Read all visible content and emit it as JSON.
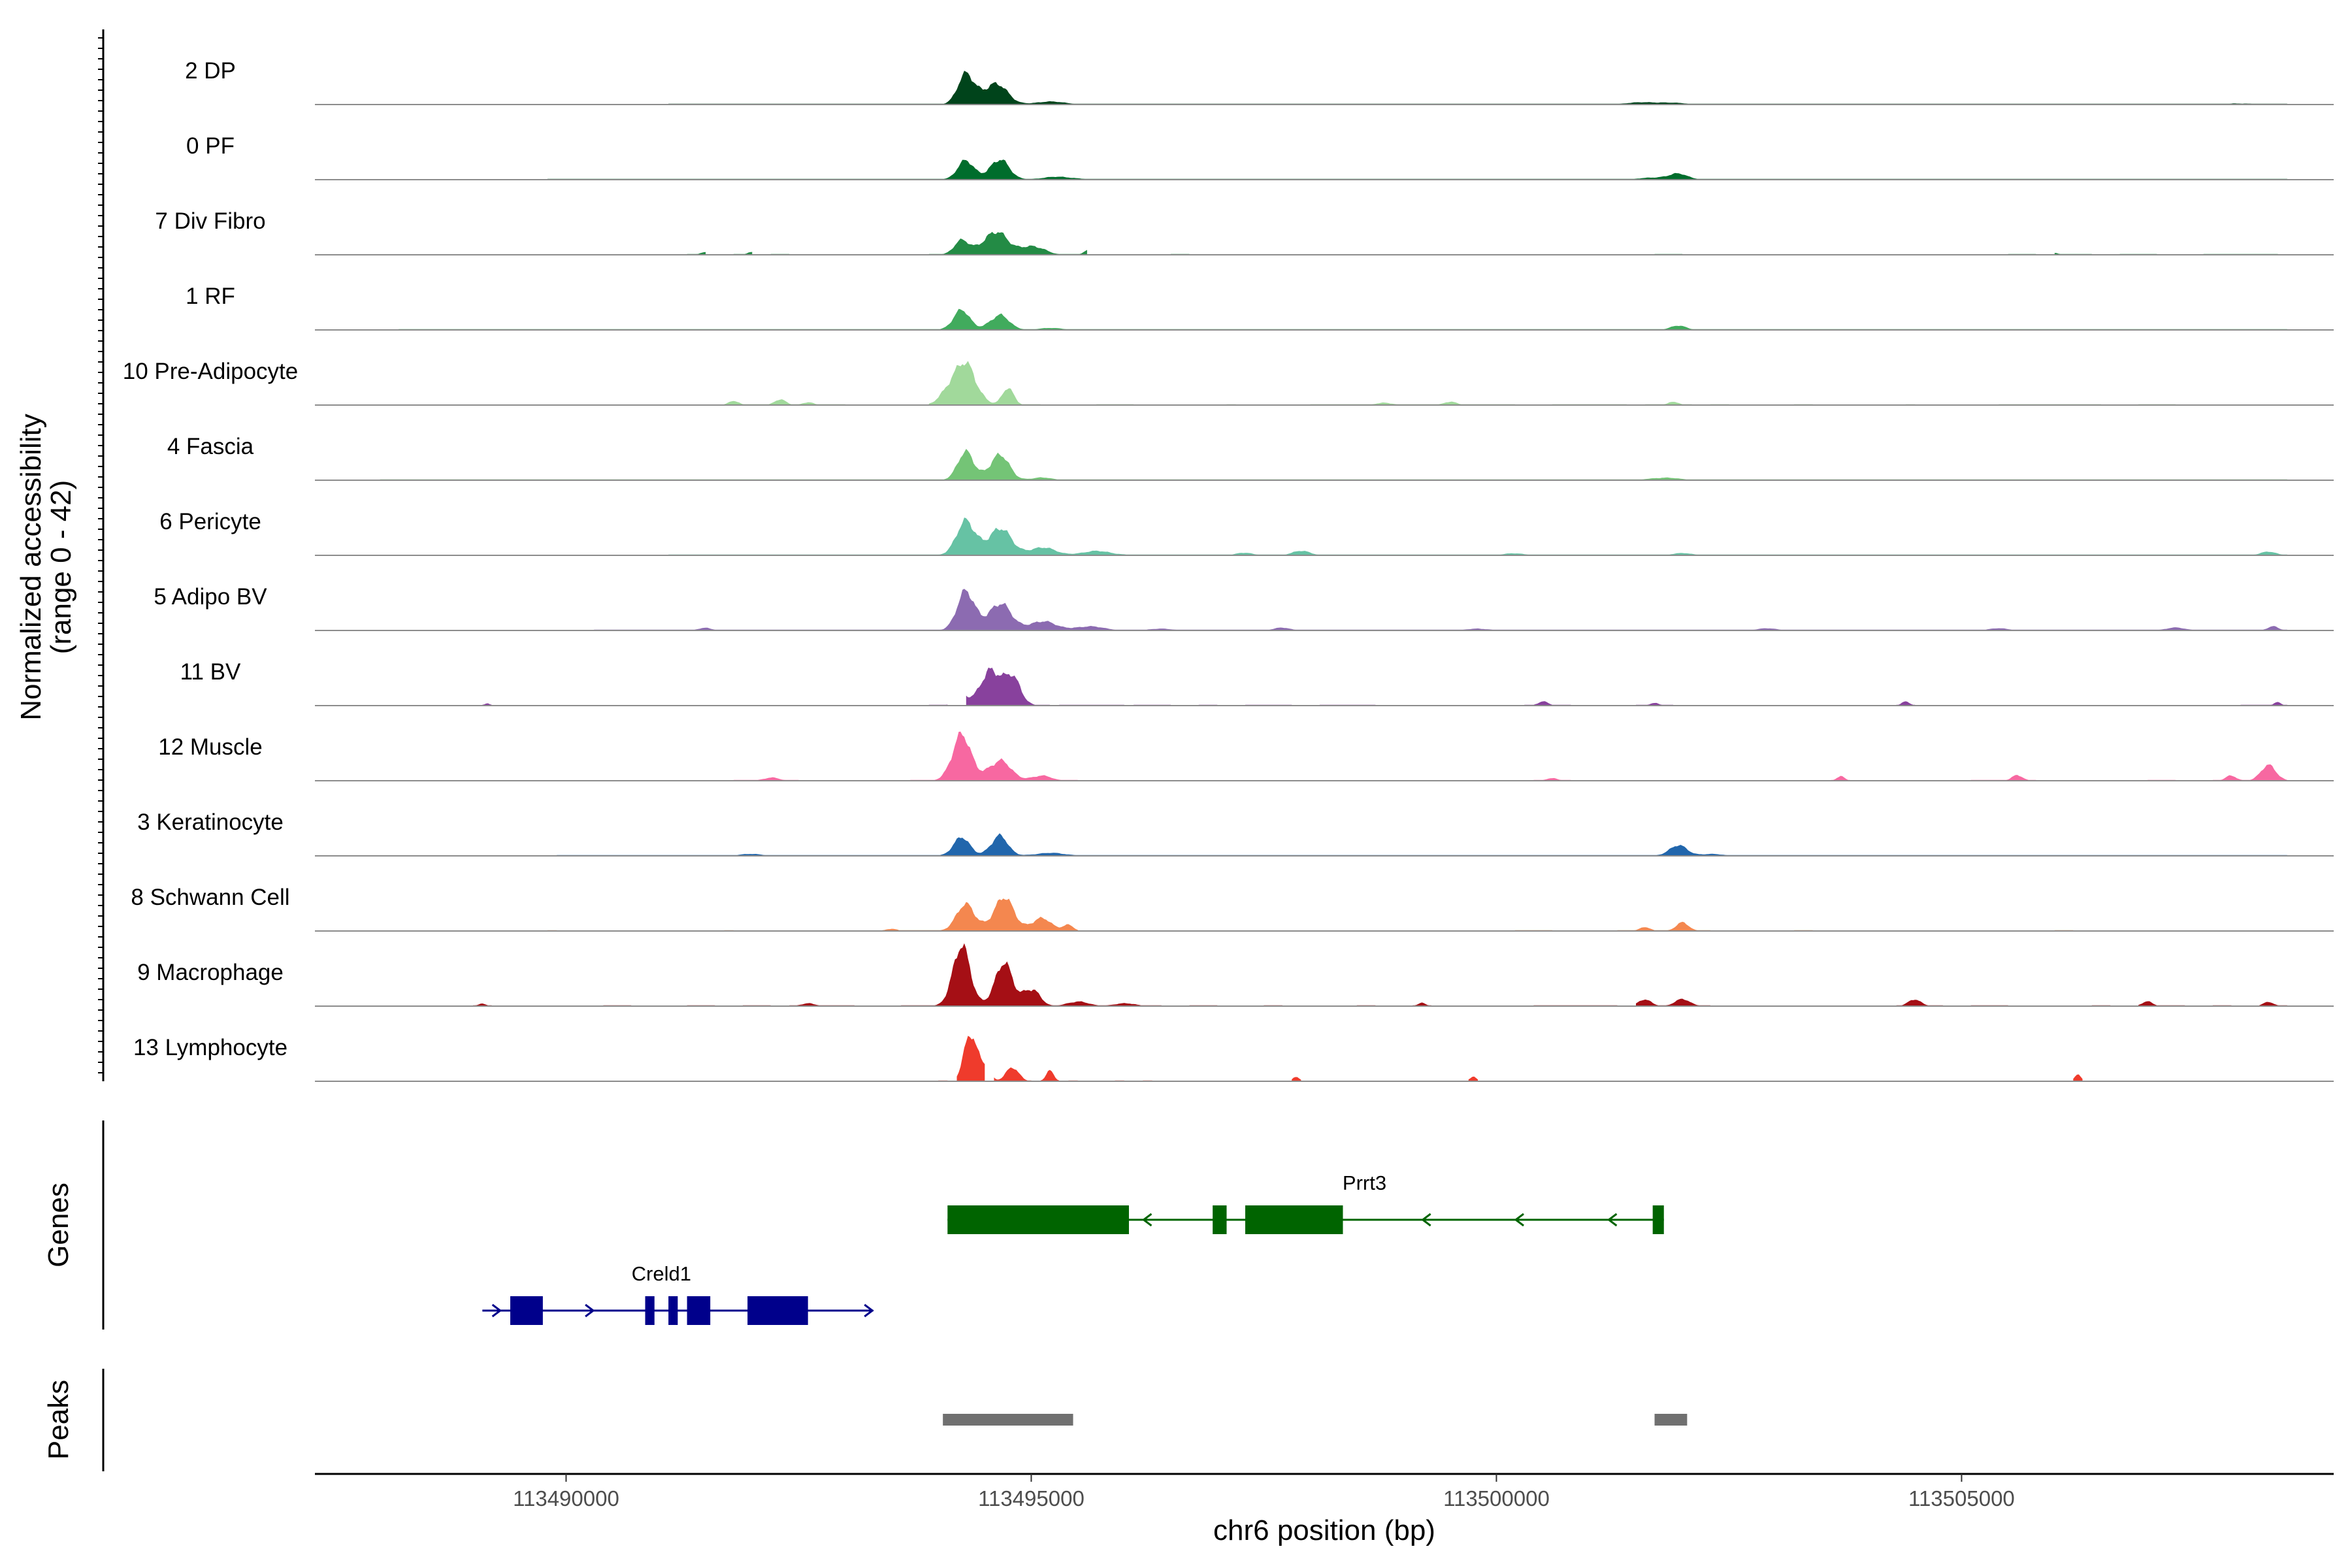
{
  "chart_data": {
    "type": "area",
    "title": "",
    "chromosome": "chr6",
    "xlabel": "chr6 position (bp)",
    "ylabel": "Normalized accessibility",
    "ylabel_range": "(range 0 - 42)",
    "y_range": [
      0,
      42
    ],
    "x_range": [
      113487300,
      113509000
    ],
    "x_ticks": [
      113490000,
      113495000,
      113500000,
      113505000
    ],
    "tracks": [
      {
        "name": "2 DP",
        "color": "#00441b",
        "background": 0.25,
        "regions": [
          [
            113491100,
            113508500
          ]
        ],
        "peaks": [
          [
            113494300,
            42,
            130
          ],
          [
            113494600,
            33,
            180
          ],
          [
            113495200,
            4,
            250
          ],
          [
            113501800,
            3,
            250
          ],
          [
            113501500,
            2,
            200
          ],
          [
            113508000,
            1.5,
            200
          ],
          [
            113489500,
            1.2,
            150
          ]
        ]
      },
      {
        "name": "0 PF",
        "color": "#006d2c",
        "background": 0.25,
        "regions": [
          [
            113489800,
            113508500
          ]
        ],
        "peaks": [
          [
            113494300,
            27,
            130
          ],
          [
            113494650,
            30,
            150
          ],
          [
            113495300,
            4,
            250
          ],
          [
            113501950,
            8,
            150
          ],
          [
            113501700,
            3,
            200
          ]
        ]
      },
      {
        "name": "7 Div Fibro",
        "color": "#238b45",
        "background": 0,
        "regions": [
          [
            113493900,
            113495600
          ],
          [
            113491300,
            113491500
          ],
          [
            113491800,
            113492000
          ],
          [
            113492200,
            113492400
          ],
          [
            113496500,
            113496700
          ],
          [
            113501700,
            113502000
          ],
          [
            113505500,
            113505800
          ],
          [
            113506000,
            113506400
          ],
          [
            113506700,
            113507100
          ],
          [
            113507600,
            113508400
          ]
        ],
        "peaks": [
          [
            113494600,
            37,
            180
          ],
          [
            113494250,
            20,
            120
          ],
          [
            113495000,
            15,
            180
          ],
          [
            113495600,
            7,
            60
          ],
          [
            113492000,
            5,
            60
          ],
          [
            113491500,
            4,
            80
          ],
          [
            113506000,
            3,
            60
          ]
        ]
      },
      {
        "name": "1 RF",
        "color": "#41ab5d",
        "background": 0.25,
        "regions": [
          [
            113488200,
            113508500
          ]
        ],
        "peaks": [
          [
            113494250,
            28,
            130
          ],
          [
            113494650,
            22,
            150
          ],
          [
            113501950,
            6,
            120
          ],
          [
            113495200,
            2.5,
            200
          ]
        ]
      },
      {
        "name": "10 Pre-Adipocyte",
        "color": "#a1d99b",
        "background": 0,
        "regions": [
          [
            113493900,
            113495100
          ],
          [
            113491700,
            113493000
          ],
          [
            113495700,
            113496100
          ],
          [
            113497100,
            113497200
          ],
          [
            113498000,
            113500200
          ],
          [
            113500600,
            113501400
          ],
          [
            113501600,
            113502100
          ],
          [
            113502300,
            113502500
          ],
          [
            113503200,
            113503400
          ],
          [
            113504400,
            113504500
          ],
          [
            113505400,
            113506500
          ],
          [
            113506900,
            113507300
          ]
        ],
        "peaks": [
          [
            113494300,
            58,
            170
          ],
          [
            113494100,
            20,
            130
          ],
          [
            113494750,
            24,
            90
          ],
          [
            113492300,
            8,
            90
          ],
          [
            113491800,
            6,
            80
          ],
          [
            113492600,
            5,
            80
          ],
          [
            113495500,
            5,
            70
          ],
          [
            113496800,
            5,
            60
          ],
          [
            113498800,
            4,
            120
          ],
          [
            113499500,
            5,
            100
          ],
          [
            113500400,
            5,
            80
          ],
          [
            113501900,
            5,
            80
          ],
          [
            113504000,
            5,
            60
          ],
          [
            113506700,
            4,
            60
          ]
        ]
      },
      {
        "name": "4 Fascia",
        "color": "#74c476",
        "background": 0.25,
        "regions": [
          [
            113488000,
            113508500
          ]
        ],
        "peaks": [
          [
            113494300,
            40,
            130
          ],
          [
            113494650,
            38,
            150
          ],
          [
            113495100,
            4,
            150
          ],
          [
            113501800,
            4,
            200
          ]
        ]
      },
      {
        "name": "6 Pericyte",
        "color": "#66c2a4",
        "background": 0.2,
        "regions": [
          [
            113491100,
            113508500
          ]
        ],
        "peaks": [
          [
            113494300,
            48,
            150
          ],
          [
            113494650,
            40,
            180
          ],
          [
            113495100,
            12,
            200
          ],
          [
            113495700,
            6,
            250
          ],
          [
            113497900,
            8,
            120
          ],
          [
            113497300,
            4,
            120
          ],
          [
            113508300,
            5,
            120
          ],
          [
            113500200,
            3,
            150
          ],
          [
            113502000,
            3,
            150
          ]
        ]
      },
      {
        "name": "5 Adipo BV",
        "color": "#8c6bb1",
        "background": 0.15,
        "regions": [
          [
            113490300,
            113508500
          ]
        ],
        "peaks": [
          [
            113494300,
            55,
            140
          ],
          [
            113494650,
            40,
            180
          ],
          [
            113495100,
            14,
            200
          ],
          [
            113495600,
            6,
            250
          ],
          [
            113496400,
            3,
            150
          ],
          [
            113497700,
            4,
            120
          ],
          [
            113499800,
            3,
            150
          ],
          [
            113502900,
            3,
            150
          ],
          [
            113505400,
            3,
            150
          ],
          [
            113507300,
            4,
            150
          ],
          [
            113508350,
            6,
            80
          ],
          [
            113491500,
            4,
            100
          ]
        ]
      },
      {
        "name": "11 BV",
        "color": "#88419d",
        "background": 0,
        "regions": [
          [
            113494300,
            113495200
          ],
          [
            113489100,
            113489200
          ],
          [
            113493900,
            113494100
          ],
          [
            113495300,
            113496000
          ],
          [
            113496100,
            113496500
          ],
          [
            113496800,
            113497000
          ],
          [
            113497300,
            113497800
          ],
          [
            113498100,
            113498700
          ],
          [
            113500300,
            113500800
          ],
          [
            113501500,
            113501900
          ],
          [
            113504300,
            113504500
          ],
          [
            113508000,
            113508500
          ]
        ],
        "peaks": [
          [
            113494550,
            60,
            140
          ],
          [
            113494800,
            42,
            130
          ],
          [
            113494250,
            15,
            100
          ],
          [
            113500500,
            6,
            80
          ],
          [
            113501700,
            5,
            60
          ],
          [
            113504400,
            6,
            60
          ],
          [
            113508400,
            6,
            50
          ],
          [
            113489150,
            4,
            40
          ]
        ]
      },
      {
        "name": "12 Muscle",
        "color": "#f768a1",
        "background": 0,
        "regions": [
          [
            113493700,
            113495500
          ],
          [
            113491800,
            113492500
          ],
          [
            113500400,
            113500800
          ],
          [
            113503600,
            113503800
          ],
          [
            113505100,
            113505800
          ],
          [
            113507000,
            113507300
          ],
          [
            113507700,
            113508500
          ]
        ],
        "peaks": [
          [
            113494250,
            65,
            150
          ],
          [
            113494650,
            30,
            180
          ],
          [
            113495100,
            8,
            150
          ],
          [
            113492200,
            5,
            120
          ],
          [
            113503700,
            8,
            60
          ],
          [
            113505600,
            10,
            80
          ],
          [
            113508300,
            22,
            120
          ],
          [
            113507900,
            8,
            80
          ],
          [
            113500600,
            4,
            80
          ]
        ]
      },
      {
        "name": "3 Keratinocyte",
        "color": "#2166ac",
        "background": 0.25,
        "regions": [
          [
            113489900,
            113508500
          ]
        ],
        "peaks": [
          [
            113494250,
            26,
            130
          ],
          [
            113494650,
            30,
            130
          ],
          [
            113495200,
            4,
            250
          ],
          [
            113501950,
            15,
            140
          ],
          [
            113502300,
            3,
            150
          ],
          [
            113492000,
            3,
            150
          ]
        ]
      },
      {
        "name": "8 Schwann Cell",
        "color": "#f4874f",
        "background": 0,
        "regions": [
          [
            113493400,
            113495500
          ],
          [
            113489800,
            113489900
          ],
          [
            113491700,
            113491800
          ],
          [
            113494500,
            113495500
          ],
          [
            113500200,
            113500600
          ],
          [
            113501300,
            113502300
          ],
          [
            113503200,
            113503400
          ],
          [
            113506000,
            113506200
          ]
        ],
        "peaks": [
          [
            113494300,
            38,
            150
          ],
          [
            113494700,
            48,
            160
          ],
          [
            113495100,
            20,
            150
          ],
          [
            113495400,
            10,
            80
          ],
          [
            113502000,
            12,
            100
          ],
          [
            113501600,
            6,
            80
          ],
          [
            113493500,
            4,
            80
          ]
        ]
      },
      {
        "name": "9 Macrophage",
        "color": "#a50f15",
        "background": 0,
        "regions": [
          [
            113493600,
            113496400
          ],
          [
            113489000,
            113489200
          ],
          [
            113490400,
            113490700
          ],
          [
            113491300,
            113491600
          ],
          [
            113491900,
            113492200
          ],
          [
            113492400,
            113493100
          ],
          [
            113496700,
            113497000
          ],
          [
            113497500,
            113497700
          ],
          [
            113498500,
            113498700
          ],
          [
            113499100,
            113499300
          ],
          [
            113500400,
            113501300
          ],
          [
            113501500,
            113502300
          ],
          [
            113504300,
            113504800
          ],
          [
            113505100,
            113505500
          ],
          [
            113506400,
            113506600
          ],
          [
            113506900,
            113507400
          ],
          [
            113507700,
            113507900
          ],
          [
            113508200,
            113508500
          ]
        ],
        "peaks": [
          [
            113494250,
            85,
            140
          ],
          [
            113494700,
            62,
            140
          ],
          [
            113495000,
            30,
            120
          ],
          [
            113495500,
            8,
            150
          ],
          [
            113496000,
            5,
            150
          ],
          [
            113501600,
            10,
            100
          ],
          [
            113502000,
            10,
            120
          ],
          [
            113504500,
            10,
            100
          ],
          [
            113507000,
            8,
            80
          ],
          [
            113508300,
            6,
            80
          ],
          [
            113492600,
            5,
            100
          ],
          [
            113499200,
            5,
            60
          ],
          [
            113489100,
            4,
            60
          ]
        ]
      },
      {
        "name": "13 Lymphocyte",
        "color": "#ef3b2c",
        "background": 0,
        "regions": [
          [
            113494000,
            113494100
          ],
          [
            113494200,
            113494500
          ],
          [
            113494600,
            113495000
          ],
          [
            113495100,
            113495300
          ],
          [
            113495400,
            113495500
          ],
          [
            113495900,
            113496000
          ],
          [
            113496200,
            113496300
          ],
          [
            113497800,
            113497900
          ],
          [
            113499700,
            113499800
          ],
          [
            113506200,
            113506300
          ]
        ],
        "peaks": [
          [
            113494350,
            70,
            100
          ],
          [
            113494500,
            25,
            80
          ],
          [
            113494800,
            20,
            100
          ],
          [
            113495200,
            15,
            60
          ],
          [
            113497850,
            8,
            50
          ],
          [
            113499750,
            8,
            50
          ],
          [
            113506250,
            10,
            50
          ]
        ]
      }
    ],
    "genes": [
      {
        "name": "Prrt3",
        "strand": "-",
        "color": "#006400",
        "start": 113494100,
        "end": 113501800,
        "exons": [
          [
            113494100,
            113496050
          ],
          [
            113496950,
            113497100
          ],
          [
            113497300,
            113498350
          ],
          [
            113501680,
            113501800
          ]
        ]
      },
      {
        "name": "Creld1",
        "strand": "+",
        "color": "#00008b",
        "start": 113489100,
        "end": 113493300,
        "exons": [
          [
            113489400,
            113489750
          ],
          [
            113490850,
            113490950
          ],
          [
            113491100,
            113491200
          ],
          [
            113491300,
            113491550
          ],
          [
            113491950,
            113492600
          ]
        ]
      }
    ],
    "peaks": [
      [
        113494050,
        113495450
      ],
      [
        113501700,
        113502050
      ]
    ],
    "genes_panel_label": "Genes",
    "peaks_panel_label": "Peaks",
    "grid": false
  }
}
